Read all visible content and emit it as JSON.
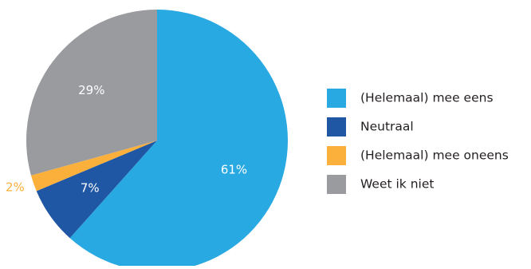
{
  "chart_data": {
    "type": "pie",
    "title": "",
    "categories": [
      "(Helemaal) mee eens",
      "Neutraal",
      "(Helemaal) mee oneens",
      "Weet ik niet"
    ],
    "values": [
      61,
      7,
      2,
      29
    ],
    "labels": [
      "61%",
      "7%",
      "2%",
      "29%"
    ],
    "colors": [
      "#29a9e1",
      "#1f57a5",
      "#fbb03b",
      "#999b9e"
    ],
    "start_angle": "top",
    "direction": "clockwise",
    "legend_position": "right"
  }
}
